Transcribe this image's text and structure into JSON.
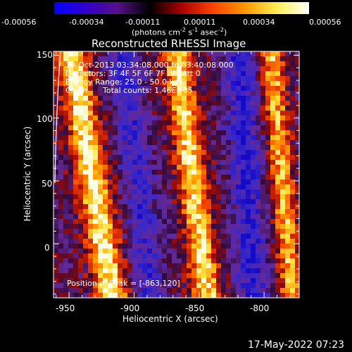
{
  "colorbar": {
    "tick_labels": [
      "-0.00056",
      "-0.00034",
      "-0.00011",
      "0.00011",
      "0.00034",
      "0.00056"
    ],
    "units_prefix": "(photons cm",
    "units_exp1": "-2",
    "units_mid": " s",
    "units_exp2": "-1",
    "units_mid2": " asec",
    "units_exp3": "-2",
    "units_suffix": ")",
    "colors": [
      "#0000ff",
      "#3300cc",
      "#551188",
      "#000000",
      "#aa0000",
      "#ff4400",
      "#ff9900",
      "#ffee55",
      "#ffffff"
    ]
  },
  "plot": {
    "title": "Reconstructed RHESSI Image",
    "xlabel": "Heliocentric X (arcsec)",
    "ylabel": "Heliocentric Y (arcsec)",
    "x_ticks": [
      "-950",
      "-900",
      "-850",
      "-800"
    ],
    "y_ticks": [
      "150",
      "100",
      "50",
      "0"
    ],
    "xlim": [
      -962,
      -773
    ],
    "ylim": [
      -43,
      153
    ],
    "annotations": {
      "time_range": "19-Oct-2013 03:34:08.000 to 03:40:08.000",
      "detectors": "Detectors: 3F 4F 5F 6F 7F 8F, Att 0",
      "energy": "Energy Range: 25.0 - 50.0 keV",
      "method": "Clean",
      "counts": "Total counts: 1.46E+05",
      "peak": "Position of Peak = [-863,120]"
    }
  },
  "footer": {
    "timestamp": "17-May-2022 07:23"
  }
}
